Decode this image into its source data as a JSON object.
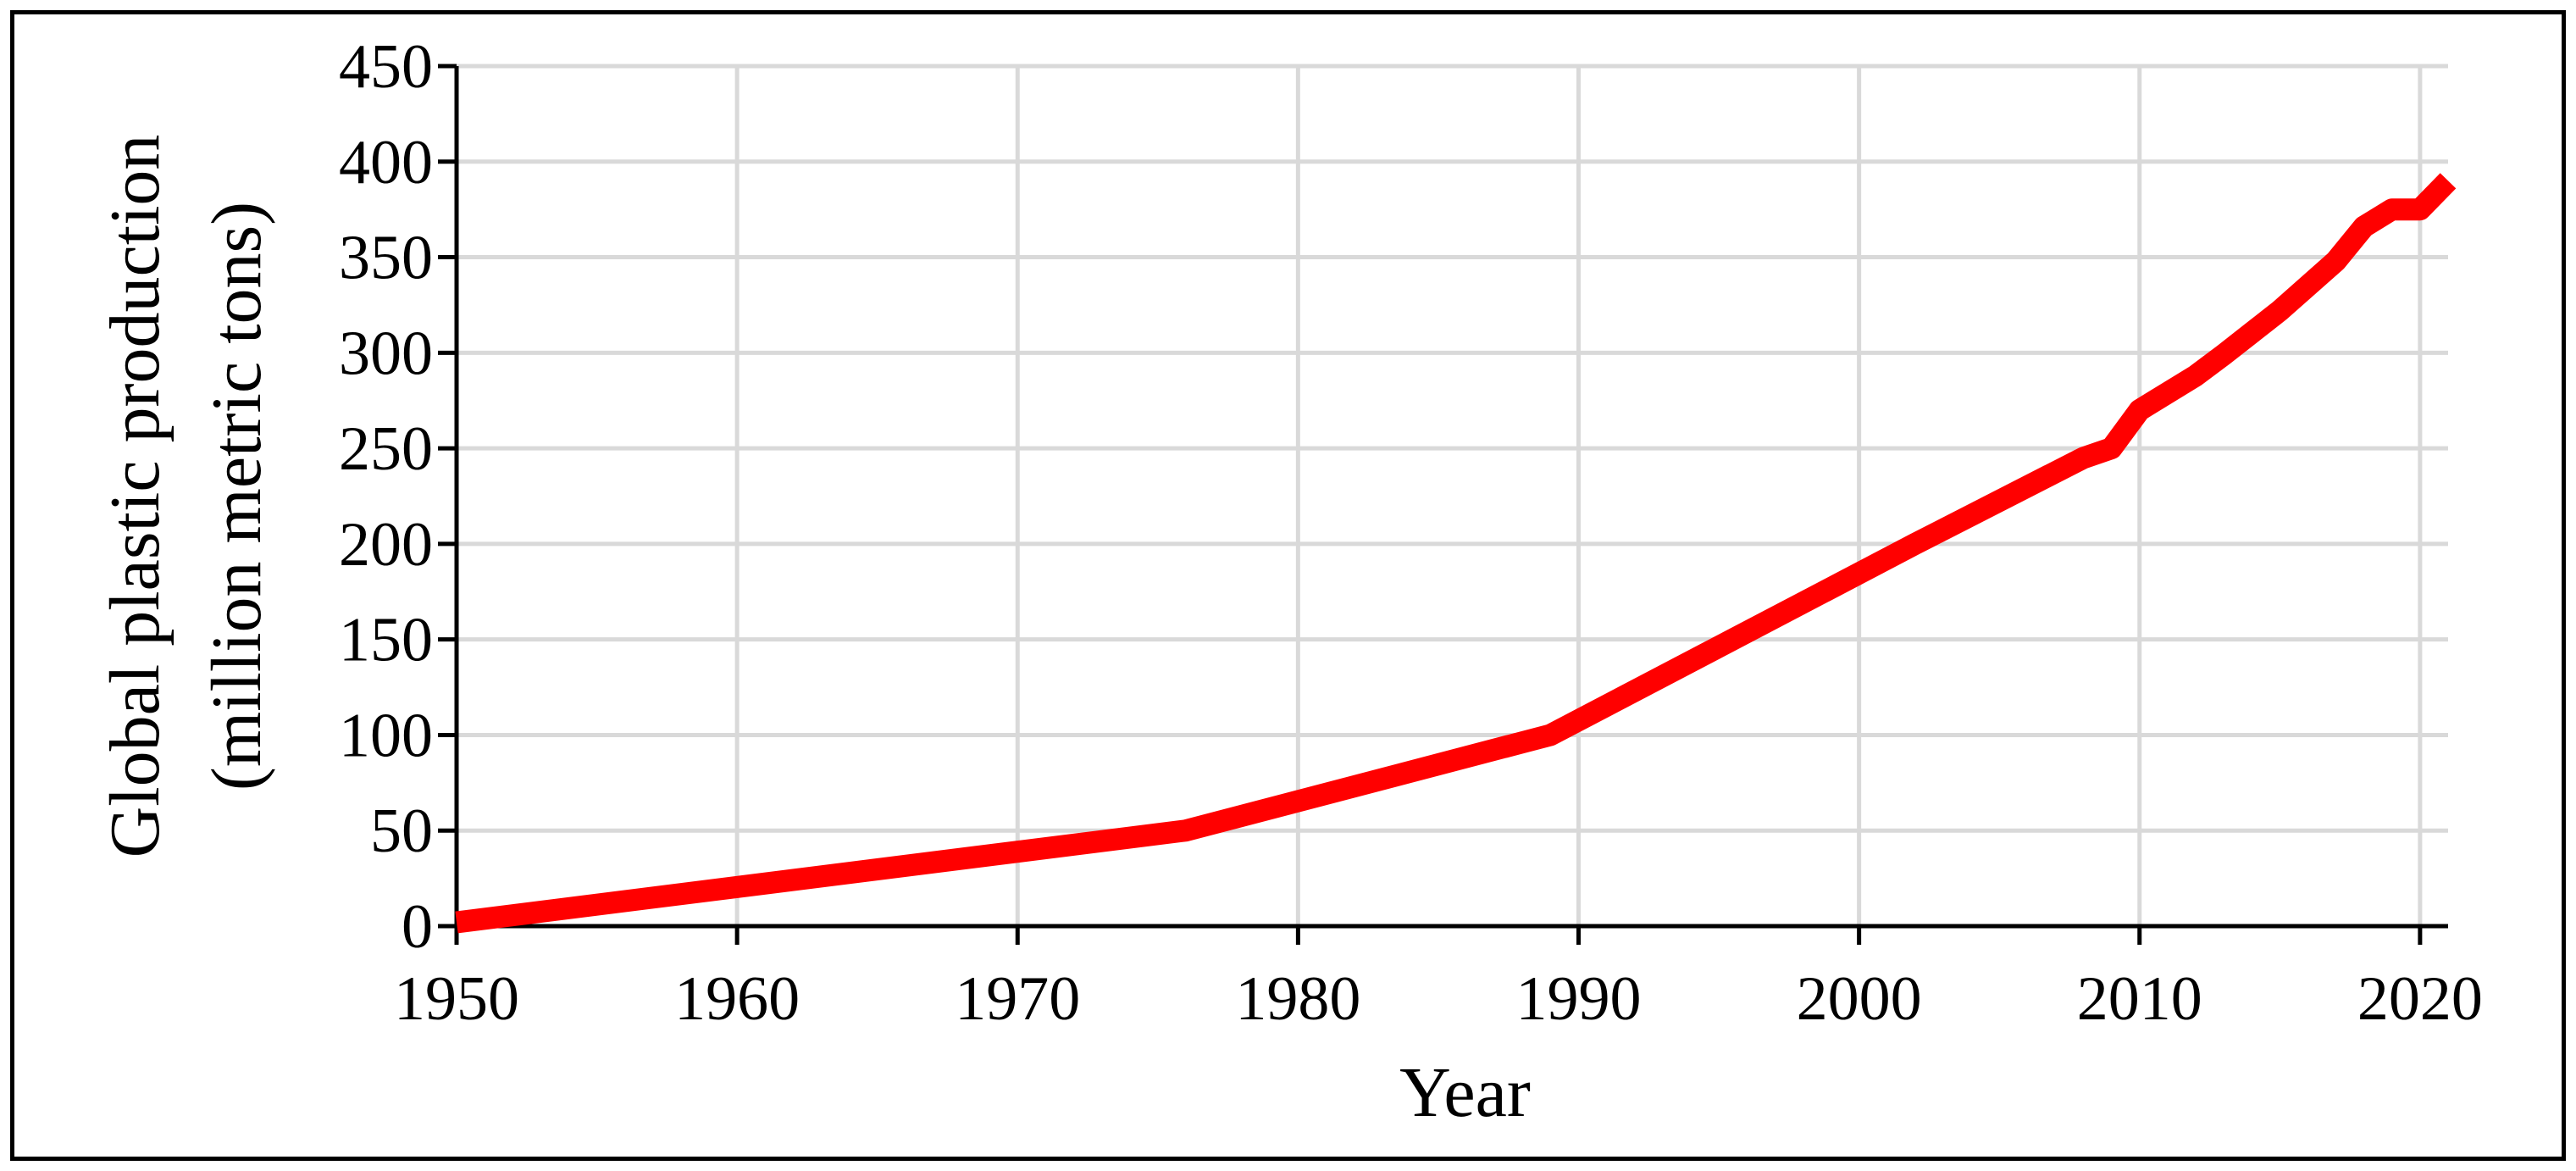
{
  "chart_data": {
    "type": "line",
    "title": "",
    "xlabel": "Year",
    "ylabel_lines": [
      "Global plastic production",
      "(million metric tons)"
    ],
    "xlim": [
      1950,
      2021
    ],
    "ylim": [
      0,
      450
    ],
    "x_ticks": [
      1950,
      1960,
      1970,
      1980,
      1990,
      2000,
      2010,
      2020
    ],
    "y_ticks": [
      0,
      50,
      100,
      150,
      200,
      250,
      300,
      350,
      400,
      450
    ],
    "grid": true,
    "legend": "none",
    "series": [
      {
        "color": "#ff0000",
        "x": [
          1950,
          1976,
          1989,
          2002,
          2008,
          2009,
          2010,
          2012,
          2013,
          2015,
          2017,
          2018,
          2019,
          2020,
          2021
        ],
        "y": [
          2,
          50,
          100,
          200,
          245,
          250,
          270,
          288,
          299,
          322,
          348,
          366,
          375,
          375,
          390
        ]
      }
    ]
  }
}
